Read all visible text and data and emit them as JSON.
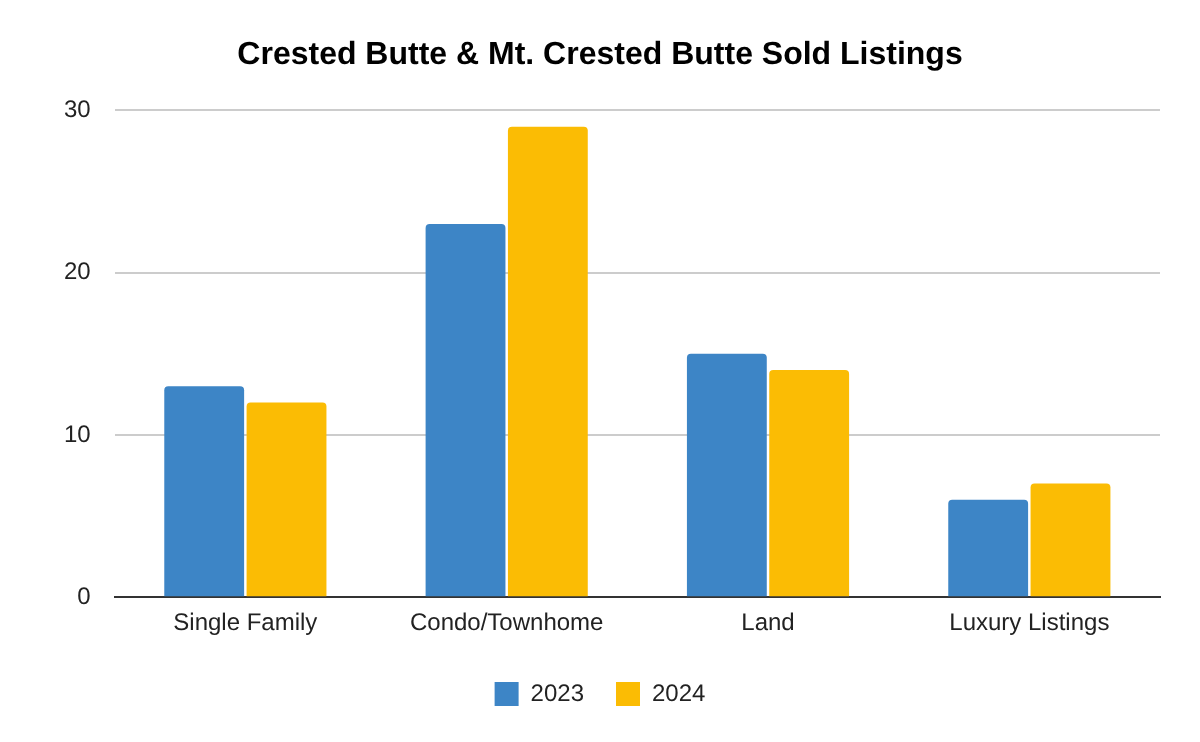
{
  "chart_data": {
    "type": "bar",
    "title": "Crested Butte & Mt. Crested Butte Sold Listings",
    "categories": [
      "Single Family",
      "Condo/Townhome",
      "Land",
      "Luxury Listings"
    ],
    "series": [
      {
        "name": "2023",
        "color": "#3d85c6",
        "values": [
          13,
          23,
          15,
          6
        ]
      },
      {
        "name": "2024",
        "color": "#fbbc04",
        "values": [
          12,
          29,
          14,
          7
        ]
      }
    ],
    "ylim": [
      0,
      30
    ],
    "yticks": [
      0,
      10,
      20,
      30
    ],
    "grid": "y",
    "legend": "bottom"
  }
}
